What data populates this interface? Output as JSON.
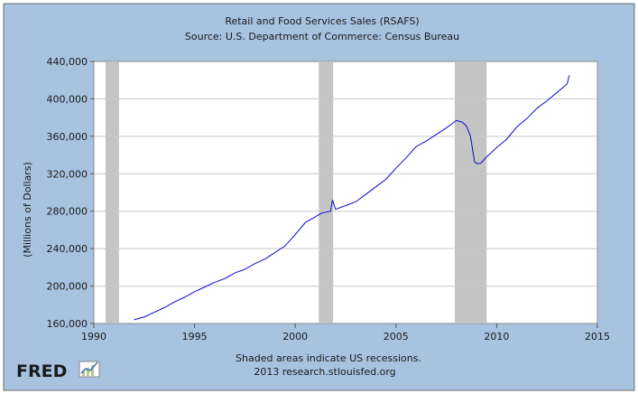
{
  "chart_data": {
    "type": "line",
    "title": "Retail and Food Services Sales (RSAFS)",
    "subtitle": "Source: U.S. Department of Commerce: Census Bureau",
    "ylabel": "(Millions of Dollars)",
    "xlabel": "",
    "xlim": [
      1990,
      2015
    ],
    "ylim": [
      160000,
      440000
    ],
    "x_ticks": [
      1990,
      1995,
      2000,
      2005,
      2010,
      2015
    ],
    "y_ticks": [
      160000,
      200000,
      240000,
      280000,
      320000,
      360000,
      400000,
      440000
    ],
    "x_tick_labels": [
      "1990",
      "1995",
      "2000",
      "2005",
      "2010",
      "2015"
    ],
    "y_tick_labels": [
      "160,000",
      "200,000",
      "240,000",
      "280,000",
      "320,000",
      "360,000",
      "400,000",
      "440,000"
    ],
    "grid": true,
    "recessions": [
      {
        "start": 1990.58,
        "end": 1991.25
      },
      {
        "start": 2001.17,
        "end": 2001.88
      },
      {
        "start": 2007.92,
        "end": 2009.5
      }
    ],
    "series": [
      {
        "color": "#0b0bcc",
        "x": [
          1992.0,
          1992.5,
          1993.0,
          1993.5,
          1994.0,
          1994.5,
          1995.0,
          1995.5,
          1996.0,
          1996.5,
          1997.0,
          1997.5,
          1998.0,
          1998.5,
          1999.0,
          1999.5,
          2000.0,
          2000.5,
          2001.0,
          2001.3,
          2001.75,
          2001.85,
          2002.0,
          2002.5,
          2003.0,
          2003.5,
          2004.0,
          2004.5,
          2005.0,
          2005.5,
          2006.0,
          2006.5,
          2007.0,
          2007.5,
          2008.0,
          2008.3,
          2008.5,
          2008.7,
          2008.9,
          2009.0,
          2009.2,
          2009.5,
          2010.0,
          2010.5,
          2011.0,
          2011.5,
          2012.0,
          2012.5,
          2013.0,
          2013.5,
          2013.6
        ],
        "y": [
          164000,
          167000,
          172000,
          177000,
          183000,
          188000,
          194000,
          199000,
          204000,
          208000,
          214000,
          218000,
          224000,
          229000,
          236000,
          243000,
          255000,
          268000,
          274000,
          278000,
          280000,
          292000,
          282000,
          286000,
          290000,
          298000,
          306000,
          314000,
          326000,
          337000,
          349000,
          355000,
          362000,
          369000,
          377000,
          375000,
          371000,
          360000,
          333000,
          331000,
          331000,
          338000,
          348000,
          357000,
          370000,
          379000,
          390000,
          398000,
          407000,
          416000,
          425000
        ]
      }
    ]
  },
  "notes": {
    "recession_note": "Shaded areas indicate US recessions.",
    "source_note": "2013 research.stlouisfed.org"
  },
  "logo": {
    "text": "FRED"
  },
  "colors": {
    "background": "#a7c3e0",
    "plot_area": "#ffffff",
    "recession_shade": "#c4c4c4",
    "grid": "#c8c8c8",
    "line": "#0b0bcc"
  }
}
